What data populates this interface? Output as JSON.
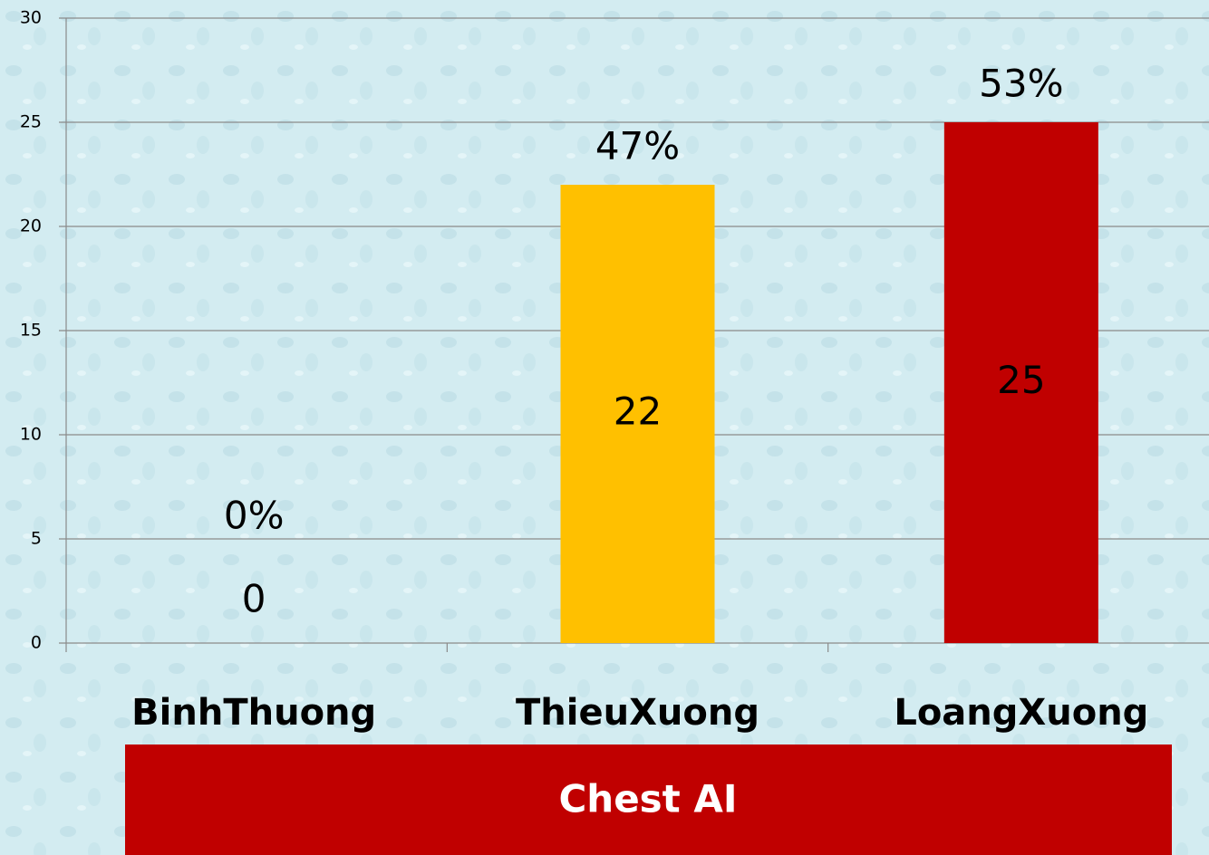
{
  "chart_data": {
    "type": "bar",
    "categories": [
      "BinhThuong",
      "ThieuXuong",
      "LoangXuong"
    ],
    "values": [
      0,
      22,
      25
    ],
    "colors": [
      null,
      "#ffc000",
      "#c00000"
    ],
    "annotations": [
      "0%",
      "47%",
      "53%"
    ],
    "xlabel": "Chest AI",
    "ylim": [
      0,
      30
    ],
    "yticks": [
      0,
      5,
      10,
      15,
      20,
      25,
      30
    ],
    "grid": true
  }
}
